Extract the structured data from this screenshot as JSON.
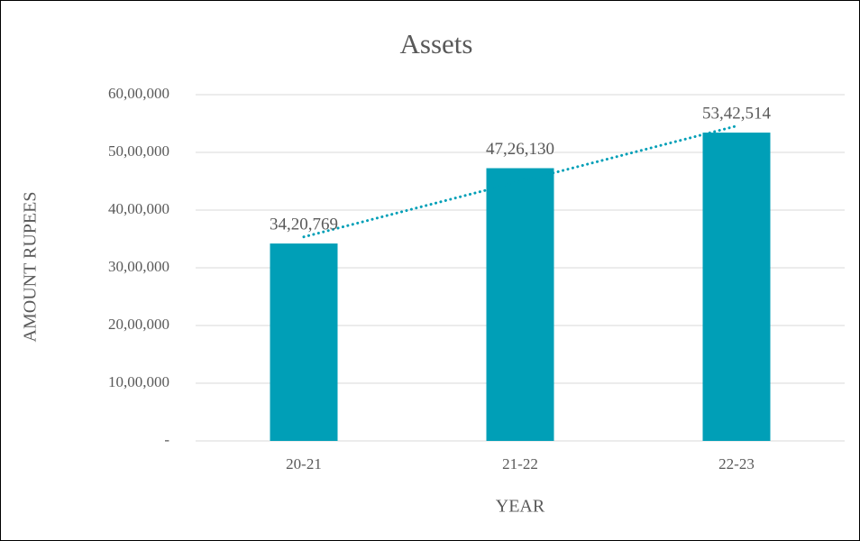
{
  "chart_data": {
    "type": "bar",
    "title": "Assets",
    "x_label": "YEAR",
    "y_label": "AMOUNT RUPEES",
    "categories": [
      "20-21",
      "21-22",
      "22-23"
    ],
    "values": [
      3420769,
      4726130,
      5342514
    ],
    "value_labels": [
      "34,20,769",
      "47,26,130",
      "53,42,514"
    ],
    "color": "#009fb7",
    "trendline": "linear",
    "ylim": [
      0,
      6000000
    ],
    "yticks": [
      {
        "value": 0,
        "label": "-"
      },
      {
        "value": 1000000,
        "label": "10,00,000"
      },
      {
        "value": 2000000,
        "label": "20,00,000"
      },
      {
        "value": 3000000,
        "label": "30,00,000"
      },
      {
        "value": 4000000,
        "label": "40,00,000"
      },
      {
        "value": 5000000,
        "label": "50,00,000"
      },
      {
        "value": 6000000,
        "label": "60,00,000"
      }
    ],
    "grid": true
  }
}
